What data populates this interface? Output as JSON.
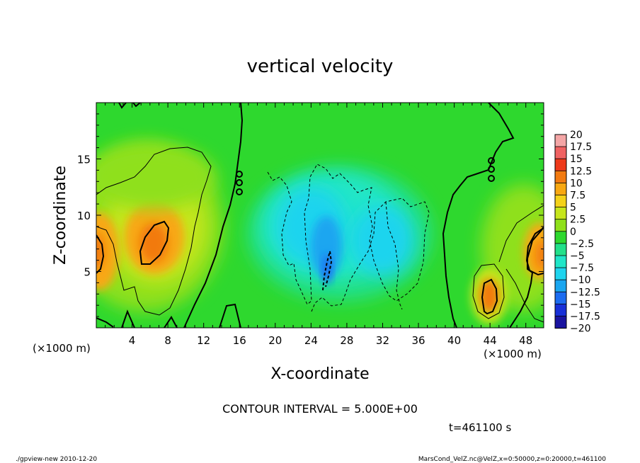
{
  "chart_data": {
    "type": "heatmap",
    "title": "vertical velocity",
    "xlabel": "X-coordinate",
    "ylabel": "Z-coordinate",
    "x_unit_left": "(×1000 m)",
    "x_unit_right": "(×1000 m)",
    "xlim": [
      0,
      50
    ],
    "ylim": [
      0,
      20
    ],
    "x_ticks": [
      4,
      8,
      12,
      16,
      20,
      24,
      28,
      32,
      36,
      40,
      44,
      48
    ],
    "x_tick_labels": [
      "4",
      "8",
      "12",
      "16",
      "20",
      "24",
      "28",
      "32",
      "36",
      "40",
      "44",
      "48"
    ],
    "y_ticks": [
      5,
      10,
      15
    ],
    "y_tick_labels": [
      "5",
      "10",
      "15"
    ],
    "colorbar": {
      "levels": [
        20,
        17.5,
        15,
        12.5,
        10,
        7.5,
        5,
        2.5,
        0,
        -2.5,
        -5,
        -7.5,
        -10,
        -12.5,
        -15,
        -17.5,
        -20
      ],
      "labels": [
        "20",
        "17.5",
        "15",
        "12.5",
        "10",
        "7.5",
        "5",
        "2.5",
        "0",
        "−2.5",
        "−5",
        "−7.5",
        "−10",
        "−12.5",
        "−15",
        "−17.5",
        "−20"
      ],
      "colors": [
        "#f4a6a6",
        "#f06262",
        "#ee3a1a",
        "#f27a10",
        "#f8a812",
        "#f4d21a",
        "#c6e61c",
        "#8fe01a",
        "#2ed82e",
        "#22e08a",
        "#20e6c8",
        "#1fd4ee",
        "#1aa6f0",
        "#1c6cf0",
        "#1830d8",
        "#1a14a0",
        "#5a20b8"
      ]
    },
    "features": [
      {
        "kind": "updraft",
        "x": 6.8,
        "z": 7.5,
        "w": 12
      },
      {
        "kind": "updraft",
        "x": 0.3,
        "z": 7,
        "w": 10
      },
      {
        "kind": "updraft",
        "x": 44,
        "z": 3,
        "w": 12
      },
      {
        "kind": "updraft",
        "x": 49.5,
        "z": 7,
        "w": 10
      },
      {
        "kind": "downdraft",
        "x": 26,
        "z": 6,
        "w": -10
      },
      {
        "kind": "downdraft",
        "x": 21,
        "z": 10,
        "w": -6
      },
      {
        "kind": "downdraft",
        "x": 31,
        "z": 9,
        "w": -6
      }
    ]
  },
  "annotations": {
    "contour_interval": "CONTOUR INTERVAL = 5.000E+00",
    "time": "t=461100 s",
    "footer_left": "./gpview-new  2010-12-20",
    "footer_right": "MarsCond_VelZ.nc@VelZ,x=0:50000,z=0:20000,t=461100"
  }
}
